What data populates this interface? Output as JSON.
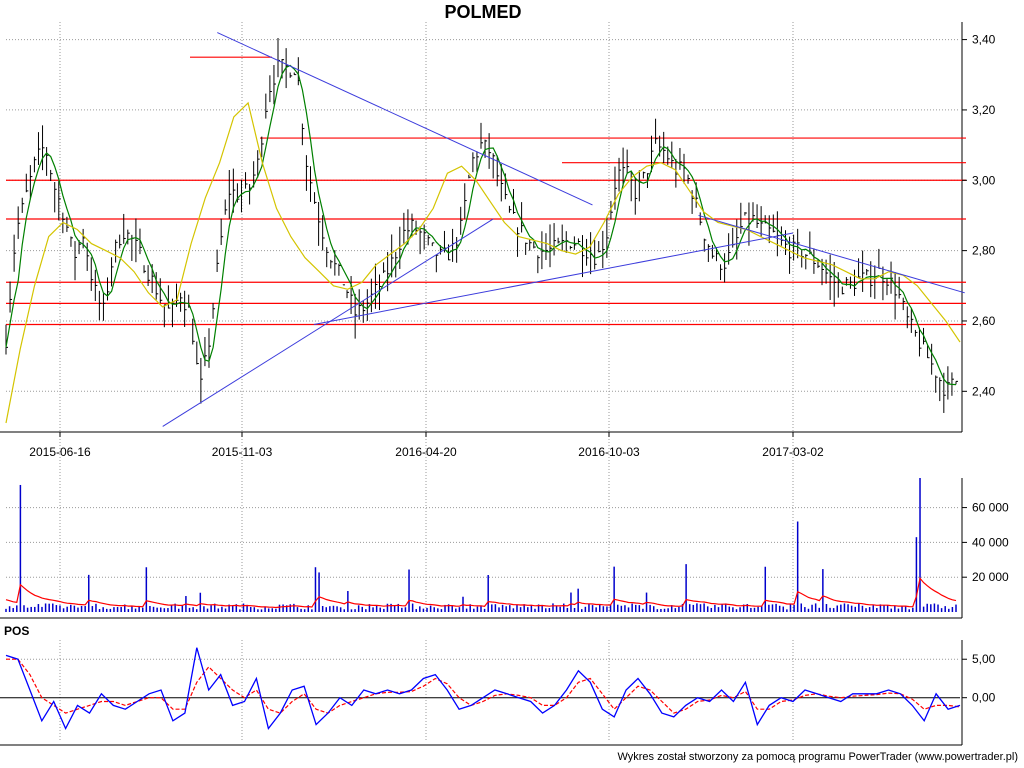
{
  "title": "POLMED",
  "footer": "Wykres został stworzony za pomocą programu PowerTrader (www.powertrader.pl)",
  "indicator_label": "POS",
  "colors": {
    "price": "#000000",
    "ma_short": "#008000",
    "ma_long": "#d4c400",
    "support_resistance": "#ff0000",
    "trendline": "#3c3cdc",
    "volume_bar": "#0000cc",
    "volume_avg": "#ff0000",
    "pos_line": "#0000ff",
    "pos_signal": "#ff0000",
    "grid": "#9a9a9a"
  },
  "chart_data": [
    {
      "type": "candlestick",
      "title": "POLMED",
      "x_tick_labels": [
        "2015-06-16",
        "2015-11-03",
        "2016-04-20",
        "2016-10-03",
        "2017-03-02"
      ],
      "y_tick_labels": [
        "3,40",
        "3,20",
        "3,00",
        "2,80",
        "2,60",
        "2,40"
      ],
      "ylim": [
        2.29,
        3.45
      ],
      "horizontal_levels": [
        3.12,
        3.05,
        3.0,
        2.89,
        2.71,
        2.65,
        2.59
      ],
      "short_resistance_level": 3.35,
      "trendlines": [
        {
          "from": [
            "2015-10-15",
            3.42
          ],
          "to": [
            "2016-09-18",
            2.93
          ]
        },
        {
          "from": [
            "2015-09-03",
            2.3
          ],
          "to": [
            "2016-06-20",
            2.89
          ]
        },
        {
          "from": [
            "2016-01-08",
            2.59
          ],
          "to": [
            "2017-03-02",
            2.85
          ]
        },
        {
          "from": [
            "2016-12-15",
            2.9
          ],
          "to": [
            "2017-07-20",
            2.68
          ]
        }
      ],
      "close_series": [
        2.55,
        2.85,
        2.95,
        3.05,
        3.1,
        2.98,
        2.9,
        2.78,
        2.85,
        2.7,
        2.62,
        2.78,
        2.86,
        2.83,
        2.78,
        2.72,
        2.66,
        2.62,
        2.68,
        2.62,
        2.4,
        2.55,
        2.8,
        2.97,
        2.96,
        2.97,
        3.05,
        3.25,
        3.32,
        3.32,
        3.32,
        3.05,
        2.92,
        2.82,
        2.75,
        2.7,
        2.62,
        2.64,
        2.68,
        2.72,
        2.78,
        2.85,
        2.87,
        2.84,
        2.8,
        2.78,
        2.8,
        2.87,
        3.05,
        3.1,
        3.08,
        2.98,
        2.9,
        2.86,
        2.82,
        2.8,
        2.8,
        2.81,
        2.83,
        2.82,
        2.8,
        2.78,
        2.85,
        3.02,
        3.02,
        2.96,
        3.02,
        3.1,
        3.08,
        3.03,
        3.03,
        2.95,
        2.85,
        2.78,
        2.76,
        2.8,
        2.88,
        2.89,
        2.86,
        2.85,
        2.82,
        2.8,
        2.8,
        2.78,
        2.76,
        2.72,
        2.7,
        2.7,
        2.72,
        2.72,
        2.74,
        2.72,
        2.68,
        2.6,
        2.55,
        2.5,
        2.45,
        2.4,
        2.43
      ],
      "ma_long_series": [
        2.31,
        2.52,
        2.7,
        2.84,
        2.88,
        2.86,
        2.82,
        2.8,
        2.78,
        2.74,
        2.68,
        2.64,
        2.66,
        2.82,
        2.95,
        3.05,
        3.18,
        3.22,
        3.05,
        2.92,
        2.84,
        2.78,
        2.74,
        2.7,
        2.69,
        2.71,
        2.76,
        2.79,
        2.82,
        2.86,
        2.92,
        3.02,
        3.04,
        3.0,
        2.94,
        2.88,
        2.84,
        2.83,
        2.82,
        2.8,
        2.79,
        2.81,
        2.88,
        2.96,
        3.01,
        3.04,
        3.05,
        3.03,
        2.97,
        2.91,
        2.88,
        2.87,
        2.86,
        2.84,
        2.82,
        2.8,
        2.78,
        2.77,
        2.76,
        2.74,
        2.72,
        2.72,
        2.74,
        2.73,
        2.7,
        2.65,
        2.6,
        2.54
      ],
      "volume": {
        "y_tick_labels": [
          "60 000",
          "40 000",
          "20 000"
        ],
        "ylim": [
          0,
          77000
        ],
        "notable_spikes": [
          73000,
          46000,
          77000,
          26000,
          52000,
          43000,
          78000
        ]
      },
      "pos": {
        "y_tick_labels": [
          "5,00",
          "0,00"
        ],
        "ylim": [
          -5.5,
          7.5
        ],
        "series": [
          {
            "name": "POS",
            "values": [
              5.5,
              5.0,
              1.0,
              -3.0,
              -0.5,
              -4.0,
              -1.0,
              -2.0,
              0.5,
              -1.0,
              -1.5,
              -0.5,
              0.5,
              1.0,
              -3.0,
              -2.0,
              6.5,
              1.0,
              3.0,
              -1.0,
              -0.5,
              2.5,
              -4.0,
              -2.0,
              1.0,
              1.5,
              -3.5,
              -2.0,
              0.0,
              -1.0,
              1.0,
              0.5,
              1.0,
              0.5,
              1.0,
              2.5,
              3.0,
              1.0,
              -1.5,
              -1.0,
              0.0,
              1.0,
              0.5,
              0.0,
              -0.5,
              -2.0,
              -1.0,
              1.0,
              3.5,
              2.0,
              -1.5,
              -2.5,
              1.0,
              2.5,
              0.5,
              -2.0,
              -2.5,
              -1.0,
              0.0,
              -0.5,
              1.0,
              -0.5,
              2.0,
              -3.5,
              -1.0,
              0.0,
              -0.5,
              1.0,
              0.5,
              0.0,
              -0.5,
              0.5,
              0.5,
              0.5,
              1.0,
              0.5,
              -1.0,
              -3.0,
              0.5,
              -1.5,
              -1.0
            ]
          },
          {
            "name": "signal",
            "values": [
              5.0,
              5.0,
              3.0,
              0.0,
              -1.0,
              -2.0,
              -1.5,
              -1.0,
              -0.5,
              -0.5,
              -1.0,
              -0.5,
              0.0,
              0.0,
              -1.5,
              -1.5,
              2.0,
              4.0,
              2.5,
              1.0,
              0.0,
              1.0,
              -1.5,
              -2.0,
              -0.5,
              0.5,
              -1.5,
              -2.0,
              -1.0,
              -0.5,
              0.0,
              0.5,
              0.7,
              0.7,
              0.8,
              1.5,
              2.5,
              1.8,
              0.0,
              -1.0,
              -0.5,
              0.3,
              0.5,
              0.3,
              0.0,
              -1.0,
              -1.0,
              0.0,
              2.0,
              2.5,
              0.5,
              -1.5,
              0.0,
              1.5,
              1.0,
              -0.5,
              -2.0,
              -1.5,
              -0.5,
              -0.3,
              0.3,
              0.0,
              0.8,
              -1.5,
              -1.5,
              -0.5,
              -0.3,
              0.3,
              0.5,
              0.2,
              0.0,
              0.2,
              0.3,
              0.4,
              0.6,
              0.5,
              -0.2,
              -1.5,
              -1.0,
              -1.0,
              -1.2
            ]
          }
        ]
      }
    }
  ]
}
